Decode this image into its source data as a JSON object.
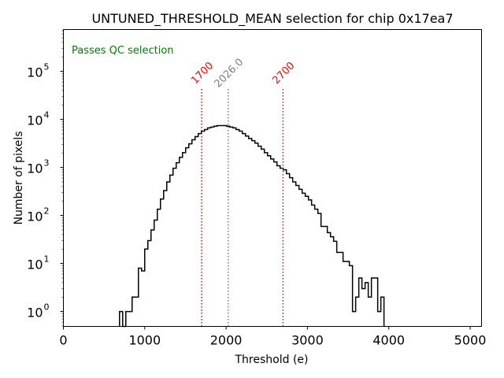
{
  "chart_data": {
    "type": "histogram-step",
    "title": "UNTUNED_THRESHOLD_MEAN selection for chip 0x17ea7",
    "xlabel": "Threshold (e)",
    "ylabel": "Number of pixels",
    "xlim": [
      0,
      5140
    ],
    "ylog": true,
    "ylim_log10": [
      -0.31,
      5.87
    ],
    "x_ticks": [
      0,
      1000,
      2000,
      3000,
      4000,
      5000
    ],
    "x_tick_labels": [
      "0",
      "1000",
      "2000",
      "3000",
      "4000",
      "5000"
    ],
    "y_ticks_exp": [
      0,
      1,
      2,
      3,
      4,
      5
    ],
    "y_tick_base": "10",
    "grid": false,
    "annotation": {
      "text": "Passes QC selection",
      "color": "#008000",
      "placement": "top-left"
    },
    "vlines": [
      {
        "x": 1700,
        "label": "1700",
        "color": "#ff0000",
        "style": "dotted"
      },
      {
        "x": 2026,
        "label": "2026.0",
        "color": "#808080",
        "style": "dotted"
      },
      {
        "x": 2700,
        "label": "2700",
        "color": "#ff0000",
        "style": "dotted"
      }
    ],
    "bins": {
      "edges_start": 690,
      "bin_width": 38.7,
      "counts": [
        1,
        0,
        1,
        1,
        2,
        2,
        8,
        7,
        20,
        30,
        50,
        80,
        135,
        220,
        330,
        500,
        690,
        960,
        1250,
        1620,
        2030,
        2570,
        3100,
        3750,
        4370,
        5070,
        5700,
        6150,
        6650,
        6900,
        7200,
        7400,
        7400,
        7400,
        7200,
        6900,
        6650,
        6150,
        5700,
        5070,
        4500,
        4000,
        3600,
        3200,
        2770,
        2400,
        2030,
        1750,
        1500,
        1300,
        1080,
        960,
        890,
        740,
        610,
        500,
        420,
        350,
        290,
        250,
        210,
        165,
        135,
        110,
        59,
        59,
        44,
        36,
        29,
        17,
        17,
        11,
        11,
        9,
        1,
        2,
        5,
        3,
        4,
        2,
        5,
        5,
        1,
        2
      ]
    },
    "hist_color": "#000000"
  }
}
